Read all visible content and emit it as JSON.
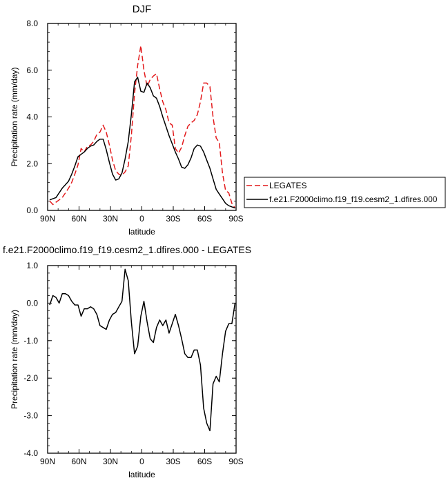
{
  "chart_data": [
    {
      "type": "line",
      "title": "DJF",
      "xlabel": "latitude",
      "ylabel": "Precipitation rate (mm/day)",
      "xlim": [
        90,
        -90
      ],
      "ylim": [
        0,
        8
      ],
      "xticks": [
        90,
        60,
        30,
        0,
        -30,
        -60,
        -90
      ],
      "xtick_labels": [
        "90N",
        "60N",
        "30N",
        "0",
        "30S",
        "60S",
        "90S"
      ],
      "yticks": [
        0,
        2,
        4,
        6,
        8
      ],
      "ytick_labels": [
        "0.0",
        "2.0",
        "4.0",
        "6.0",
        "8.0"
      ],
      "legend_position": "right",
      "series": [
        {
          "name": "LEGATES",
          "color": "#e31a1c",
          "style": "dashed",
          "x": [
            88,
            85,
            82,
            79,
            76,
            73,
            70,
            67,
            64,
            61,
            58,
            55,
            52,
            49,
            46,
            43,
            40,
            37,
            34,
            31,
            28,
            25,
            22,
            19,
            16,
            13,
            10,
            7,
            4,
            1,
            -2,
            -5,
            -8,
            -11,
            -14,
            -17,
            -20,
            -23,
            -26,
            -29,
            -32,
            -35,
            -38,
            -41,
            -44,
            -47,
            -50,
            -53,
            -56,
            -59,
            -62,
            -65,
            -68,
            -71,
            -74,
            -77,
            -80,
            -83,
            -86,
            -89
          ],
          "y": [
            0.4,
            0.25,
            0.35,
            0.45,
            0.55,
            0.75,
            0.95,
            1.2,
            1.55,
            1.95,
            2.65,
            2.5,
            2.75,
            2.8,
            2.95,
            3.25,
            3.35,
            3.65,
            3.35,
            2.8,
            2.15,
            1.7,
            1.55,
            1.5,
            1.65,
            1.9,
            3.2,
            5.0,
            6.2,
            7.05,
            6.0,
            5.3,
            5.6,
            5.75,
            5.85,
            5.2,
            4.65,
            4.3,
            3.75,
            3.65,
            2.65,
            2.45,
            2.7,
            3.2,
            3.6,
            3.75,
            3.85,
            4.1,
            4.65,
            5.45,
            5.45,
            5.3,
            4.0,
            3.1,
            2.9,
            1.6,
            0.85,
            0.75,
            0.3,
            0.1
          ]
        },
        {
          "name": "f.e21.F2000climo.f19_f19.cesm2_1.dfires.000",
          "color": "#000000",
          "style": "solid",
          "x": [
            88,
            85,
            82,
            79,
            76,
            73,
            70,
            67,
            64,
            61,
            58,
            55,
            52,
            49,
            46,
            43,
            40,
            37,
            34,
            31,
            28,
            25,
            22,
            19,
            16,
            13,
            10,
            7,
            4,
            1,
            -2,
            -5,
            -8,
            -11,
            -14,
            -17,
            -20,
            -23,
            -26,
            -29,
            -32,
            -35,
            -38,
            -41,
            -44,
            -47,
            -50,
            -53,
            -56,
            -59,
            -62,
            -65,
            -68,
            -71,
            -74,
            -77,
            -80,
            -83,
            -86,
            -89
          ],
          "y": [
            0.45,
            0.5,
            0.55,
            0.75,
            0.95,
            1.1,
            1.25,
            1.55,
            1.9,
            2.3,
            2.4,
            2.5,
            2.65,
            2.75,
            2.8,
            2.95,
            3.05,
            3.05,
            2.6,
            2.05,
            1.55,
            1.3,
            1.35,
            1.6,
            2.2,
            2.95,
            4.1,
            5.5,
            5.7,
            5.1,
            5.05,
            5.45,
            5.25,
            4.9,
            4.8,
            4.45,
            4.0,
            3.6,
            3.2,
            2.85,
            2.5,
            2.2,
            1.85,
            1.8,
            1.95,
            2.25,
            2.65,
            2.8,
            2.75,
            2.5,
            2.15,
            1.8,
            1.35,
            0.9,
            0.7,
            0.5,
            0.3,
            0.2,
            0.15,
            0.1
          ]
        }
      ]
    },
    {
      "type": "line",
      "title": "f.e21.F2000climo.f19_f19.cesm2_1.dfires.000 - LEGATES",
      "xlabel": "latitude",
      "ylabel": "Precipitation rate (mm/day)",
      "xlim": [
        90,
        -90
      ],
      "ylim": [
        -4,
        1
      ],
      "xticks": [
        90,
        60,
        30,
        0,
        -30,
        -60,
        -90
      ],
      "xtick_labels": [
        "90N",
        "60N",
        "30N",
        "0",
        "30S",
        "60S",
        "90S"
      ],
      "yticks": [
        1,
        0,
        -1,
        -2,
        -3,
        -4
      ],
      "ytick_labels": [
        "1.0",
        "0.0",
        "-1.0",
        "-2.0",
        "-3.0",
        "-4.0"
      ],
      "series": [
        {
          "color": "#000000",
          "style": "solid",
          "x": [
            88,
            85,
            82,
            79,
            76,
            73,
            70,
            67,
            64,
            61,
            58,
            55,
            52,
            49,
            46,
            43,
            40,
            37,
            34,
            31,
            28,
            25,
            22,
            19,
            16,
            13,
            10,
            7,
            4,
            1,
            -2,
            -5,
            -8,
            -11,
            -14,
            -17,
            -20,
            -23,
            -26,
            -29,
            -32,
            -35,
            -38,
            -41,
            -44,
            -47,
            -50,
            -53,
            -56,
            -59,
            -62,
            -65,
            -68,
            -71,
            -74,
            -77,
            -80,
            -83,
            -86,
            -89
          ],
          "y": [
            -0.05,
            0.2,
            0.15,
            0.0,
            0.25,
            0.25,
            0.2,
            0.05,
            -0.05,
            -0.05,
            -0.35,
            -0.15,
            -0.15,
            -0.1,
            -0.15,
            -0.3,
            -0.6,
            -0.65,
            -0.7,
            -0.45,
            -0.3,
            -0.25,
            -0.1,
            0.05,
            0.9,
            0.6,
            -0.5,
            -1.35,
            -1.15,
            -0.35,
            0.05,
            -0.5,
            -0.95,
            -1.05,
            -0.65,
            -0.45,
            -0.6,
            -0.45,
            -0.8,
            -0.55,
            -0.3,
            -0.6,
            -0.95,
            -1.35,
            -1.45,
            -1.45,
            -1.25,
            -1.25,
            -1.65,
            -2.8,
            -3.2,
            -3.4,
            -2.15,
            -1.95,
            -2.1,
            -1.35,
            -0.75,
            -0.55,
            -0.55,
            0.0
          ]
        }
      ]
    }
  ]
}
